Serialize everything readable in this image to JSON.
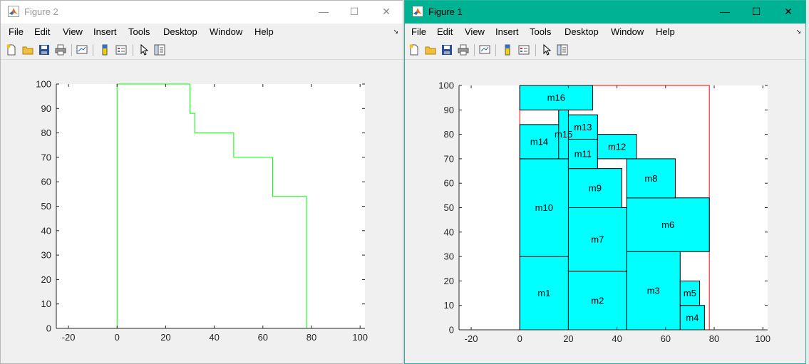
{
  "menu_items": [
    "File",
    "Edit",
    "View",
    "Insert",
    "Tools",
    "Desktop",
    "Window",
    "Help"
  ],
  "figure2": {
    "title": "Figure 2",
    "chart_data": {
      "type": "line",
      "title": "",
      "xlabel": "",
      "ylabel": "",
      "xlim": [
        -25,
        102
      ],
      "ylim": [
        0,
        100
      ],
      "xticks": [
        -20,
        0,
        20,
        40,
        60,
        80,
        100
      ],
      "yticks": [
        0,
        10,
        20,
        30,
        40,
        50,
        60,
        70,
        80,
        90,
        100
      ],
      "grid": false,
      "color": "#00ff00",
      "series": [
        {
          "x": [
            0,
            0,
            30,
            30,
            32,
            32,
            48,
            48,
            64,
            64,
            78,
            78
          ],
          "y": [
            0,
            100,
            100,
            88,
            88,
            80,
            80,
            70,
            70,
            54,
            54,
            0
          ]
        }
      ]
    }
  },
  "figure1": {
    "title": "Figure 1",
    "chart_data": {
      "type": "rectangles",
      "title": "",
      "xlabel": "",
      "ylabel": "",
      "xlim": [
        -25,
        102
      ],
      "ylim": [
        0,
        100
      ],
      "xticks": [
        -20,
        0,
        20,
        40,
        60,
        80,
        100
      ],
      "yticks": [
        0,
        10,
        20,
        30,
        40,
        50,
        60,
        70,
        80,
        90,
        100
      ],
      "grid": false,
      "fill_color": "#00ffff",
      "edge_color": "#000000",
      "container": {
        "x": 0,
        "y": 0,
        "w": 78,
        "h": 100,
        "color": "#ff0000"
      },
      "rects": [
        {
          "label": "m1",
          "x": 0,
          "y": 0,
          "w": 20,
          "h": 30
        },
        {
          "label": "m2",
          "x": 20,
          "y": 0,
          "w": 24,
          "h": 24
        },
        {
          "label": "m3",
          "x": 44,
          "y": 0,
          "w": 22,
          "h": 32
        },
        {
          "label": "m4",
          "x": 66,
          "y": 0,
          "w": 10,
          "h": 10
        },
        {
          "label": "m5",
          "x": 66,
          "y": 10,
          "w": 8,
          "h": 10
        },
        {
          "label": "m6",
          "x": 44,
          "y": 32,
          "w": 34,
          "h": 22
        },
        {
          "label": "m7",
          "x": 20,
          "y": 24,
          "w": 24,
          "h": 26
        },
        {
          "label": "m8",
          "x": 44,
          "y": 54,
          "w": 20,
          "h": 16
        },
        {
          "label": "m9",
          "x": 20,
          "y": 50,
          "w": 22,
          "h": 16
        },
        {
          "label": "m10",
          "x": 0,
          "y": 30,
          "w": 20,
          "h": 40
        },
        {
          "label": "m11",
          "x": 20,
          "y": 66,
          "w": 12,
          "h": 12
        },
        {
          "label": "m12",
          "x": 32,
          "y": 70,
          "w": 16,
          "h": 10
        },
        {
          "label": "m13",
          "x": 20,
          "y": 78,
          "w": 12,
          "h": 10
        },
        {
          "label": "m14",
          "x": 0,
          "y": 70,
          "w": 16,
          "h": 14
        },
        {
          "label": "m15",
          "x": 16,
          "y": 70,
          "w": 4,
          "h": 20
        },
        {
          "label": "m16",
          "x": 0,
          "y": 90,
          "w": 30,
          "h": 10
        }
      ]
    }
  },
  "icons": {
    "window": [
      "minimize-icon",
      "maximize-icon",
      "close-icon"
    ],
    "toolbar": [
      "new-figure-icon",
      "open-file-icon",
      "save-icon",
      "print-icon",
      "link-plot-icon",
      "insert-colorbar-icon",
      "insert-legend-icon",
      "pointer-icon",
      "property-inspector-icon"
    ]
  },
  "window_controls": {
    "minimize": "—",
    "maximize": "☐",
    "close": "✕"
  }
}
